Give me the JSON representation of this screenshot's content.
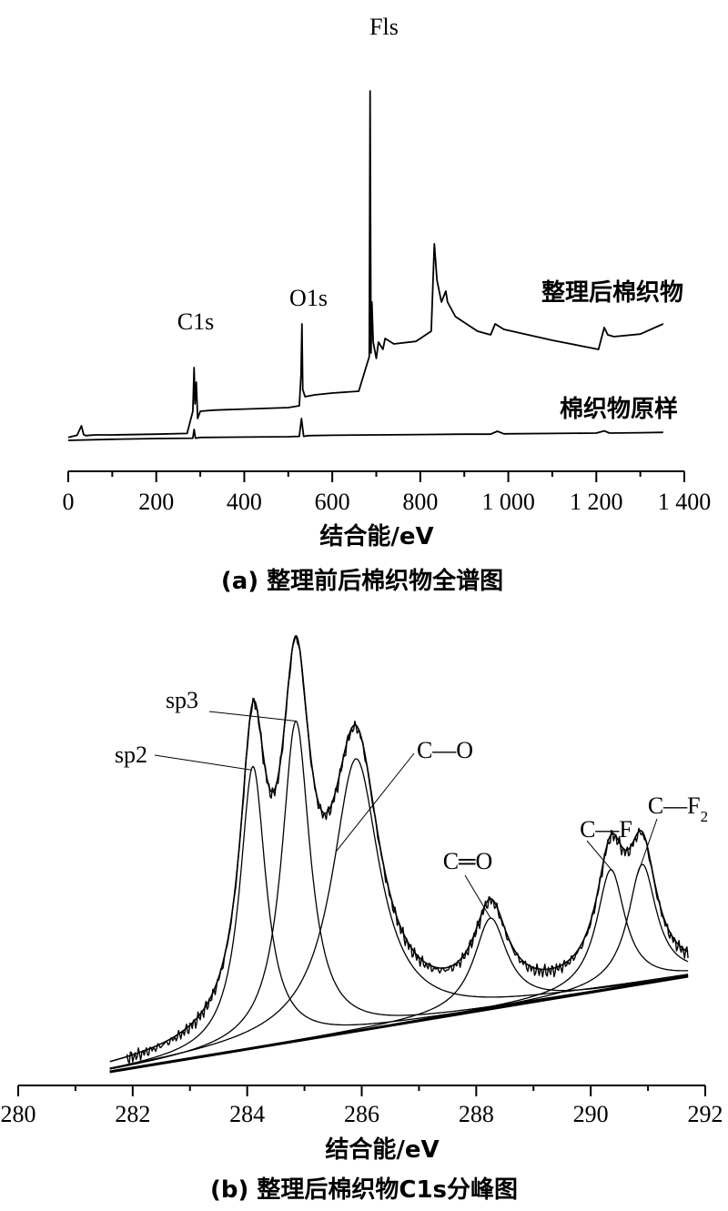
{
  "chart_data": [
    {
      "type": "line",
      "xlabel": "结合能/eV",
      "ylabel": "",
      "xlim": [
        0,
        1400
      ],
      "xticks": [
        0,
        200,
        400,
        600,
        800,
        1000,
        1200,
        1400
      ],
      "xtick_labels": [
        "0",
        "200",
        "400",
        "600",
        "800",
        "1 000",
        "1 200",
        "1 400"
      ],
      "caption": "(a) 整理前后棉织物全谱图",
      "grid": false,
      "series": [
        {
          "name": "整理后棉织物",
          "x": [
            0,
            20,
            30,
            35,
            40,
            60,
            100,
            200,
            270,
            283,
            286,
            288,
            291,
            294,
            300,
            330,
            400,
            500,
            525,
            529,
            531,
            533,
            538,
            560,
            600,
            660,
            684,
            686,
            688,
            690,
            693,
            700,
            705,
            715,
            720,
            740,
            790,
            825,
            832,
            838,
            848,
            858,
            862,
            880,
            930,
            960,
            970,
            990,
            1100,
            1205,
            1218,
            1226,
            1240,
            1300,
            1352
          ],
          "y": [
            0.8,
            1.4,
            4.0,
            1.6,
            1.3,
            1.5,
            1.5,
            1.7,
            1.9,
            8.0,
            20.0,
            10.0,
            16.0,
            6.0,
            8.0,
            8.3,
            8.6,
            9.0,
            9.5,
            18.0,
            32.0,
            14.0,
            12.0,
            12.5,
            13.0,
            13.5,
            23.0,
            96.0,
            24.0,
            38.0,
            27.0,
            22.5,
            27.0,
            25.0,
            28.0,
            26.5,
            27.2,
            30.0,
            54.0,
            44.0,
            38.0,
            41.0,
            38.0,
            34.0,
            30.0,
            29.0,
            32.0,
            30.5,
            27.5,
            25.0,
            31.0,
            29.0,
            28.5,
            29.2,
            32.0
          ]
        },
        {
          "name": "棉织物原样",
          "x": [
            0,
            100,
            200,
            283,
            286,
            289,
            300,
            400,
            500,
            525,
            530,
            535,
            545,
            600,
            700,
            800,
            900,
            960,
            975,
            990,
            1100,
            1200,
            1218,
            1230,
            1300,
            1352
          ],
          "y": [
            0.0,
            0.3,
            0.5,
            0.6,
            3.0,
            0.6,
            0.8,
            0.9,
            1.0,
            1.1,
            6.0,
            1.1,
            1.3,
            1.4,
            1.5,
            1.6,
            1.7,
            1.7,
            2.5,
            1.8,
            1.9,
            2.0,
            2.6,
            2.0,
            2.1,
            2.2
          ]
        }
      ],
      "annotations": [
        {
          "text": "C1s",
          "x": 287,
          "y": 0
        },
        {
          "text": "O1s",
          "x": 531,
          "y": 0
        },
        {
          "text": "Fls",
          "x": 687,
          "y": 0
        }
      ]
    },
    {
      "type": "line",
      "xlabel": "结合能/eV",
      "ylabel": "",
      "xlim": [
        280,
        292
      ],
      "xticks": [
        280,
        282,
        284,
        286,
        288,
        290,
        292
      ],
      "xtick_labels": [
        "280",
        "282",
        "284",
        "286",
        "288",
        "290",
        "292"
      ],
      "caption": "(b) 整理后棉织物C1s分峰图",
      "grid": false,
      "baseline": {
        "x0": 281.6,
        "y0": 0.0,
        "x1": 291.7,
        "y1": 1.0
      },
      "components": [
        {
          "label": "sp2",
          "center": 284.1,
          "height": 2.95,
          "fwhm": 0.55
        },
        {
          "label": "sp3",
          "center": 284.85,
          "height": 3.35,
          "fwhm": 0.6
        },
        {
          "label": "C—O",
          "center": 285.9,
          "height": 2.85,
          "fwhm": 1.0
        },
        {
          "label": "C═O",
          "center": 288.25,
          "height": 0.95,
          "fwhm": 0.7
        },
        {
          "label": "C—F",
          "center": 290.35,
          "height": 1.25,
          "fwhm": 0.6
        },
        {
          "label": "C—F",
          "label_sub": "2",
          "center": 290.9,
          "height": 1.25,
          "fwhm": 0.6
        }
      ]
    }
  ]
}
